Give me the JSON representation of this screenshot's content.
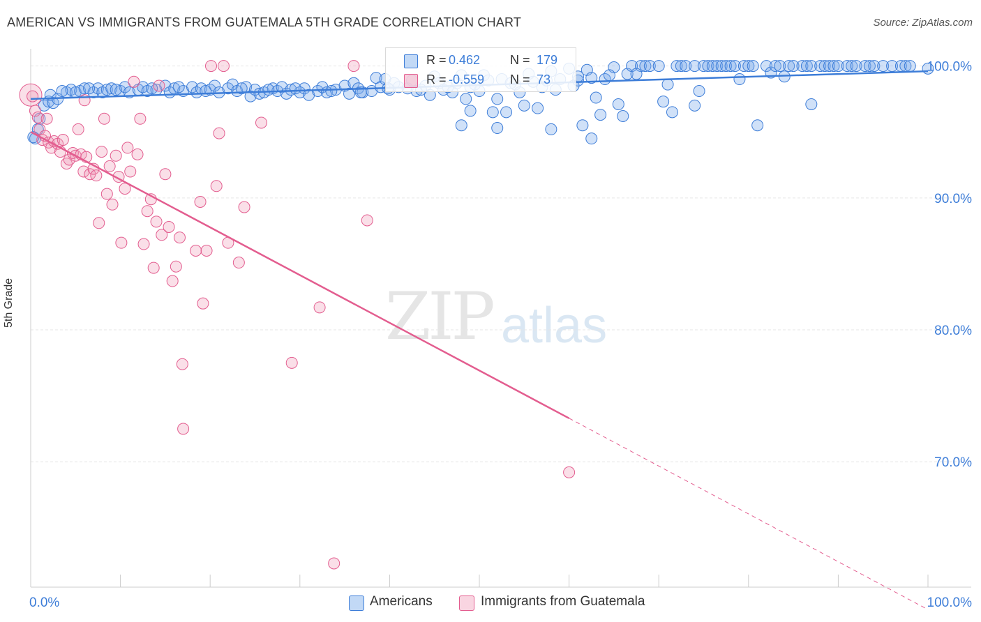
{
  "title": "AMERICAN VS IMMIGRANTS FROM GUATEMALA 5TH GRADE CORRELATION CHART",
  "source": "Source: ZipAtlas.com",
  "watermark": {
    "zip": "ZIP",
    "atlas": "atlas"
  },
  "colors": {
    "blue": "#3d7dd8",
    "blue_fill": "rgba(120,170,235,0.35)",
    "pink": "#e35d8f",
    "pink_fill": "rgba(240,150,180,0.3)",
    "axis_text": "#3d7dd8",
    "grid": "#e6e6e6"
  },
  "legend": {
    "rows": [
      {
        "r_label": "R =",
        "r_value": "0.462",
        "n_label": "N =",
        "n_value": "179"
      },
      {
        "r_label": "R =",
        "r_value": "-0.559",
        "n_label": "N =",
        "n_value": "73"
      }
    ]
  },
  "bottom_legend": {
    "americans": "Americans",
    "guatemala": "Immigrants from Guatemala"
  },
  "chart_data": {
    "type": "scatter",
    "title": "AMERICAN VS IMMIGRANTS FROM GUATEMALA 5TH GRADE CORRELATION CHART",
    "xlabel": "",
    "ylabel": "5th Grade",
    "xlim": [
      0,
      100
    ],
    "ylim": [
      60.5,
      101.3
    ],
    "x_tick_labels": [
      "0.0%",
      "100.0%"
    ],
    "y_ticks": [
      70,
      80,
      90,
      100
    ],
    "y_tick_labels": [
      "70.0%",
      "80.0%",
      "90.0%",
      "100.0%"
    ],
    "grid": true,
    "legend_position": "top-center",
    "series": [
      {
        "name": "Americans",
        "r": 0.462,
        "n": 179,
        "trend": {
          "x": [
            0,
            100
          ],
          "y": [
            97.5,
            99.6
          ]
        },
        "points": [
          [
            0.5,
            94.5
          ],
          [
            0.8,
            95.2
          ],
          [
            1.0,
            96.0
          ],
          [
            1.5,
            97.0
          ],
          [
            2.0,
            97.3
          ],
          [
            2.2,
            97.8
          ],
          [
            2.5,
            97.2
          ],
          [
            3.0,
            97.5
          ],
          [
            4.0,
            98.0
          ],
          [
            4.5,
            98.2
          ],
          [
            5.0,
            98.0
          ],
          [
            5.5,
            98.1
          ],
          [
            6.0,
            98.3
          ],
          [
            7.0,
            98.0
          ],
          [
            7.5,
            98.3
          ],
          [
            8.0,
            98.0
          ],
          [
            8.5,
            98.2
          ],
          [
            9.0,
            98.3
          ],
          [
            10.0,
            98.1
          ],
          [
            10.5,
            98.4
          ],
          [
            11.0,
            98.0
          ],
          [
            12.0,
            98.2
          ],
          [
            12.5,
            98.4
          ],
          [
            13.0,
            98.1
          ],
          [
            14.0,
            98.2
          ],
          [
            15.0,
            98.5
          ],
          [
            15.5,
            98.0
          ],
          [
            16.0,
            98.3
          ],
          [
            17.0,
            98.1
          ],
          [
            18.0,
            98.4
          ],
          [
            18.5,
            98.0
          ],
          [
            19.0,
            98.3
          ],
          [
            20.0,
            98.2
          ],
          [
            20.5,
            98.5
          ],
          [
            21.0,
            98.0
          ],
          [
            22.0,
            98.3
          ],
          [
            22.5,
            98.6
          ],
          [
            23.0,
            98.1
          ],
          [
            24.0,
            98.4
          ],
          [
            24.5,
            97.7
          ],
          [
            25.0,
            98.2
          ],
          [
            25.5,
            97.9
          ],
          [
            26.0,
            98.0
          ],
          [
            27.0,
            98.3
          ],
          [
            27.5,
            98.1
          ],
          [
            28.0,
            98.4
          ],
          [
            28.5,
            97.9
          ],
          [
            29.0,
            98.2
          ],
          [
            30.0,
            98.0
          ],
          [
            30.5,
            98.3
          ],
          [
            31.0,
            97.8
          ],
          [
            32.0,
            98.1
          ],
          [
            32.5,
            98.4
          ],
          [
            33.0,
            98.0
          ],
          [
            34.0,
            98.2
          ],
          [
            35.0,
            98.5
          ],
          [
            35.5,
            97.9
          ],
          [
            36.0,
            98.7
          ],
          [
            36.5,
            98.3
          ],
          [
            37.0,
            98.0
          ],
          [
            38.0,
            98.1
          ],
          [
            38.5,
            99.1
          ],
          [
            39.0,
            98.4
          ],
          [
            39.5,
            99.0
          ],
          [
            40.0,
            98.2
          ],
          [
            40.5,
            98.7
          ],
          [
            41.0,
            98.4
          ],
          [
            42.0,
            98.3
          ],
          [
            42.5,
            98.9
          ],
          [
            43.0,
            98.1
          ],
          [
            44.0,
            98.5
          ],
          [
            44.5,
            97.8
          ],
          [
            45.0,
            99.2
          ],
          [
            45.5,
            98.7
          ],
          [
            46.0,
            98.2
          ],
          [
            47.0,
            98.0
          ],
          [
            47.5,
            98.7
          ],
          [
            48.0,
            99.3
          ],
          [
            48.5,
            97.5
          ],
          [
            49.0,
            98.4
          ],
          [
            50.0,
            98.1
          ],
          [
            50.5,
            99.3
          ],
          [
            51.0,
            98.9
          ],
          [
            52.0,
            97.5
          ],
          [
            52.5,
            99.0
          ],
          [
            53.0,
            96.5
          ],
          [
            54.0,
            98.6
          ],
          [
            54.5,
            98.0
          ],
          [
            55.0,
            97.0
          ],
          [
            55.5,
            99.4
          ],
          [
            56.0,
            98.8
          ],
          [
            56.5,
            96.8
          ],
          [
            57.0,
            98.4
          ],
          [
            58.0,
            99.6
          ],
          [
            58.5,
            98.2
          ],
          [
            59.0,
            99.0
          ],
          [
            60.0,
            99.8
          ],
          [
            60.5,
            98.5
          ],
          [
            61.0,
            98.9
          ],
          [
            62.0,
            99.7
          ],
          [
            62.5,
            99.1
          ],
          [
            63.0,
            97.6
          ],
          [
            63.5,
            96.3
          ],
          [
            64.0,
            99.0
          ],
          [
            65.0,
            99.9
          ],
          [
            65.5,
            97.1
          ],
          [
            66.0,
            96.2
          ],
          [
            66.5,
            99.4
          ],
          [
            67.0,
            100
          ],
          [
            68.0,
            100
          ],
          [
            68.5,
            100
          ],
          [
            69.0,
            100
          ],
          [
            70.0,
            100
          ],
          [
            70.5,
            97.3
          ],
          [
            71.0,
            98.6
          ],
          [
            71.5,
            96.5
          ],
          [
            72.0,
            100
          ],
          [
            72.5,
            100
          ],
          [
            73.0,
            100
          ],
          [
            74.0,
            100
          ],
          [
            74.5,
            98.1
          ],
          [
            75.0,
            100
          ],
          [
            75.5,
            100
          ],
          [
            76.0,
            100
          ],
          [
            76.5,
            100
          ],
          [
            77.0,
            100
          ],
          [
            77.5,
            100
          ],
          [
            78.0,
            100
          ],
          [
            78.5,
            100
          ],
          [
            79.0,
            99.0
          ],
          [
            79.5,
            100
          ],
          [
            80.0,
            100
          ],
          [
            80.5,
            100
          ],
          [
            81.0,
            95.5
          ],
          [
            82.0,
            100
          ],
          [
            82.5,
            99.5
          ],
          [
            83.0,
            100
          ],
          [
            83.5,
            100
          ],
          [
            84.0,
            99.2
          ],
          [
            84.5,
            100
          ],
          [
            85.0,
            100
          ],
          [
            86.0,
            100
          ],
          [
            86.5,
            100
          ],
          [
            87.0,
            100
          ],
          [
            88.0,
            100
          ],
          [
            88.5,
            100
          ],
          [
            89.0,
            100
          ],
          [
            89.5,
            100
          ],
          [
            90.0,
            100
          ],
          [
            91.0,
            100
          ],
          [
            91.5,
            100
          ],
          [
            92.0,
            100
          ],
          [
            93.0,
            100
          ],
          [
            93.5,
            100
          ],
          [
            94.0,
            100
          ],
          [
            95.0,
            100
          ],
          [
            96.0,
            100
          ],
          [
            97.0,
            100
          ],
          [
            97.5,
            100
          ],
          [
            98.0,
            100
          ],
          [
            100.0,
            99.8
          ],
          [
            49.0,
            96.6
          ],
          [
            51.5,
            96.5
          ],
          [
            48.0,
            95.5
          ],
          [
            52.0,
            95.3
          ],
          [
            58.0,
            95.2
          ],
          [
            61.5,
            95.5
          ],
          [
            62.5,
            94.5
          ],
          [
            87.0,
            97.1
          ],
          [
            74.0,
            97.0
          ],
          [
            0.3,
            94.6
          ],
          [
            3.5,
            98.1
          ],
          [
            6.5,
            98.3
          ],
          [
            9.5,
            98.2
          ],
          [
            13.5,
            98.3
          ],
          [
            16.5,
            98.4
          ],
          [
            19.5,
            98.1
          ],
          [
            23.5,
            98.3
          ],
          [
            26.5,
            98.2
          ],
          [
            29.5,
            98.3
          ],
          [
            33.5,
            98.1
          ],
          [
            36.8,
            98.0
          ],
          [
            39.8,
            98.3
          ],
          [
            43.5,
            98.2
          ],
          [
            46.5,
            98.4
          ],
          [
            49.5,
            98.6
          ],
          [
            53.5,
            98.7
          ],
          [
            57.5,
            98.9
          ],
          [
            61.0,
            99.2
          ],
          [
            64.5,
            99.3
          ],
          [
            67.5,
            99.4
          ]
        ]
      },
      {
        "name": "Immigrants from Guatemala",
        "r": -0.559,
        "n": 73,
        "trend": {
          "x": [
            0,
            60
          ],
          "y": [
            95.0,
            73.3
          ],
          "dashed_to": [
            100,
            58.8
          ]
        },
        "points": [
          [
            0.0,
            97.8
          ],
          [
            0.5,
            96.6
          ],
          [
            0.8,
            96.1
          ],
          [
            1.0,
            95.2
          ],
          [
            1.3,
            94.4
          ],
          [
            1.6,
            94.7
          ],
          [
            2.0,
            94.2
          ],
          [
            2.3,
            93.8
          ],
          [
            2.6,
            94.3
          ],
          [
            3.0,
            94.1
          ],
          [
            3.3,
            93.5
          ],
          [
            3.6,
            94.4
          ],
          [
            4.0,
            92.6
          ],
          [
            4.3,
            92.9
          ],
          [
            4.7,
            93.4
          ],
          [
            5.0,
            93.2
          ],
          [
            5.3,
            95.2
          ],
          [
            5.6,
            93.3
          ],
          [
            5.9,
            92.0
          ],
          [
            6.2,
            93.1
          ],
          [
            6.6,
            91.8
          ],
          [
            7.0,
            92.2
          ],
          [
            7.3,
            91.7
          ],
          [
            7.6,
            88.1
          ],
          [
            7.9,
            93.5
          ],
          [
            8.2,
            96.0
          ],
          [
            8.5,
            90.3
          ],
          [
            8.8,
            92.4
          ],
          [
            9.1,
            89.5
          ],
          [
            9.5,
            93.2
          ],
          [
            9.8,
            91.6
          ],
          [
            10.1,
            86.6
          ],
          [
            10.5,
            90.7
          ],
          [
            10.8,
            93.8
          ],
          [
            11.1,
            92.0
          ],
          [
            11.5,
            98.8
          ],
          [
            11.9,
            93.3
          ],
          [
            12.2,
            96.0
          ],
          [
            12.6,
            86.5
          ],
          [
            13.0,
            89.0
          ],
          [
            13.4,
            89.9
          ],
          [
            13.7,
            84.7
          ],
          [
            14.0,
            88.2
          ],
          [
            14.3,
            98.5
          ],
          [
            14.6,
            87.2
          ],
          [
            15.0,
            91.8
          ],
          [
            15.4,
            87.8
          ],
          [
            15.8,
            83.7
          ],
          [
            16.2,
            84.8
          ],
          [
            16.6,
            87.0
          ],
          [
            16.9,
            77.4
          ],
          [
            17.0,
            72.5
          ],
          [
            18.4,
            86.0
          ],
          [
            18.9,
            89.7
          ],
          [
            19.2,
            82.0
          ],
          [
            19.6,
            86.0
          ],
          [
            20.1,
            100
          ],
          [
            20.7,
            90.9
          ],
          [
            21.0,
            94.9
          ],
          [
            21.5,
            100
          ],
          [
            22.0,
            86.6
          ],
          [
            23.2,
            85.1
          ],
          [
            23.8,
            89.3
          ],
          [
            25.7,
            95.7
          ],
          [
            29.1,
            77.5
          ],
          [
            32.2,
            81.7
          ],
          [
            33.8,
            62.3
          ],
          [
            36.0,
            100
          ],
          [
            37.5,
            88.3
          ],
          [
            60.0,
            69.2
          ],
          [
            0.2,
            97.7
          ],
          [
            1.8,
            96.0
          ],
          [
            6.0,
            97.4
          ]
        ]
      }
    ]
  }
}
